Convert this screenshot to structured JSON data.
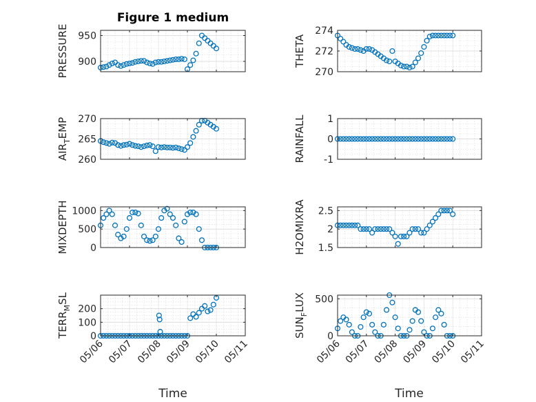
{
  "figure": {
    "title": "Figure 1 medium",
    "xlabel": "Time"
  },
  "colors": {
    "marker": "#0072BD",
    "axis": "#262626",
    "grid": "#d9d9d9"
  },
  "xticks": [
    "05/06",
    "05/07",
    "05/08",
    "05/09",
    "05/10",
    "05/11"
  ],
  "chart_data": [
    {
      "type": "scatter",
      "ylabel": "PRESSURE",
      "ylim": [
        880,
        960
      ],
      "yticks": [
        900,
        950
      ],
      "grid": true,
      "x": [
        0.0,
        0.1,
        0.2,
        0.3,
        0.4,
        0.5,
        0.6,
        0.7,
        0.8,
        0.9,
        1.0,
        1.1,
        1.2,
        1.3,
        1.4,
        1.5,
        1.6,
        1.7,
        1.8,
        1.9,
        2.0,
        2.1,
        2.2,
        2.3,
        2.4,
        2.5,
        2.6,
        2.7,
        2.8,
        2.9,
        3.0,
        3.1,
        3.2,
        3.3,
        3.4,
        3.5,
        3.6,
        3.7,
        3.8,
        3.9,
        4.0
      ],
      "y": [
        888,
        889,
        890,
        893,
        896,
        898,
        893,
        891,
        893,
        895,
        896,
        897,
        899,
        900,
        901,
        901,
        898,
        896,
        895,
        898,
        899,
        899,
        900,
        901,
        902,
        903,
        904,
        904,
        905,
        904,
        885,
        893,
        902,
        915,
        935,
        950,
        945,
        940,
        935,
        930,
        925
      ]
    },
    {
      "type": "scatter",
      "ylabel": "THETA",
      "ylim": [
        270,
        274
      ],
      "yticks": [
        270,
        272,
        274
      ],
      "grid": true,
      "x": [
        0.0,
        0.1,
        0.2,
        0.3,
        0.4,
        0.5,
        0.6,
        0.7,
        0.8,
        0.9,
        1.0,
        1.1,
        1.2,
        1.3,
        1.4,
        1.5,
        1.6,
        1.7,
        1.8,
        1.9,
        2.0,
        2.1,
        2.2,
        2.3,
        2.4,
        2.5,
        2.6,
        2.7,
        2.8,
        2.9,
        3.0,
        3.1,
        3.2,
        3.3,
        3.4,
        3.5,
        3.6,
        3.7,
        3.8,
        3.9,
        4.0
      ],
      "y": [
        273.5,
        273.2,
        272.9,
        272.6,
        272.4,
        272.3,
        272.2,
        272.2,
        272.1,
        272.0,
        272.2,
        272.2,
        272.1,
        271.9,
        271.7,
        271.5,
        271.3,
        271.1,
        271.0,
        272.0,
        271.0,
        270.8,
        270.6,
        270.5,
        270.5,
        270.4,
        270.5,
        270.9,
        271.3,
        271.8,
        272.4,
        273.0,
        273.4,
        273.5,
        273.5,
        273.5,
        273.5,
        273.5,
        273.5,
        273.5,
        273.5
      ]
    },
    {
      "type": "scatter",
      "ylabel": "AIR_TEMP",
      "ylim": [
        260,
        270
      ],
      "yticks": [
        260,
        265,
        270
      ],
      "grid": true,
      "x": [
        0.0,
        0.1,
        0.2,
        0.3,
        0.4,
        0.5,
        0.6,
        0.7,
        0.8,
        0.9,
        1.0,
        1.1,
        1.2,
        1.3,
        1.4,
        1.5,
        1.6,
        1.7,
        1.8,
        1.9,
        2.0,
        2.1,
        2.2,
        2.3,
        2.4,
        2.5,
        2.6,
        2.7,
        2.8,
        2.9,
        3.0,
        3.1,
        3.2,
        3.3,
        3.4,
        3.5,
        3.6,
        3.7,
        3.8,
        3.9,
        4.0
      ],
      "y": [
        264.5,
        264.2,
        264.0,
        263.8,
        264.1,
        264.0,
        263.5,
        263.3,
        263.5,
        263.6,
        263.8,
        263.5,
        263.3,
        263.2,
        263.0,
        263.2,
        263.4,
        263.5,
        263.2,
        262.0,
        263.0,
        262.9,
        263.0,
        262.9,
        262.9,
        262.8,
        262.9,
        262.7,
        262.5,
        262.3,
        263.0,
        264.0,
        265.5,
        267.0,
        268.5,
        269.5,
        269.5,
        269.0,
        268.5,
        268.0,
        267.5
      ]
    },
    {
      "type": "scatter",
      "ylabel": "RAINFALL",
      "ylim": [
        -1,
        1
      ],
      "yticks": [
        -1,
        0,
        1
      ],
      "grid": true,
      "x": [
        0.0,
        0.1,
        0.2,
        0.3,
        0.4,
        0.5,
        0.6,
        0.7,
        0.8,
        0.9,
        1.0,
        1.1,
        1.2,
        1.3,
        1.4,
        1.5,
        1.6,
        1.7,
        1.8,
        1.9,
        2.0,
        2.1,
        2.2,
        2.3,
        2.4,
        2.5,
        2.6,
        2.7,
        2.8,
        2.9,
        3.0,
        3.1,
        3.2,
        3.3,
        3.4,
        3.5,
        3.6,
        3.7,
        3.8,
        3.9,
        4.0
      ],
      "y": [
        0,
        0,
        0,
        0,
        0,
        0,
        0,
        0,
        0,
        0,
        0,
        0,
        0,
        0,
        0,
        0,
        0,
        0,
        0,
        0,
        0,
        0,
        0,
        0,
        0,
        0,
        0,
        0,
        0,
        0,
        0,
        0,
        0,
        0,
        0,
        0,
        0,
        0,
        0,
        0,
        0
      ]
    },
    {
      "type": "scatter",
      "ylabel": "MIXDEPTH",
      "ylim": [
        0,
        1100
      ],
      "yticks": [
        0,
        500,
        1000
      ],
      "grid": true,
      "x": [
        0.0,
        0.1,
        0.2,
        0.3,
        0.4,
        0.5,
        0.6,
        0.7,
        0.8,
        0.9,
        1.0,
        1.1,
        1.2,
        1.3,
        1.4,
        1.5,
        1.6,
        1.7,
        1.8,
        1.9,
        2.0,
        2.1,
        2.2,
        2.3,
        2.4,
        2.5,
        2.6,
        2.7,
        2.8,
        2.9,
        3.0,
        3.1,
        3.2,
        3.3,
        3.4,
        3.5,
        3.6,
        3.7,
        3.8,
        3.9,
        4.0
      ],
      "y": [
        600,
        800,
        900,
        1000,
        900,
        600,
        350,
        250,
        300,
        500,
        800,
        950,
        950,
        920,
        600,
        300,
        200,
        180,
        200,
        300,
        500,
        800,
        1000,
        1050,
        900,
        800,
        600,
        250,
        150,
        700,
        900,
        950,
        950,
        900,
        500,
        200,
        0,
        0,
        0,
        0,
        0
      ]
    },
    {
      "type": "scatter",
      "ylabel": "H2OMIXRA",
      "ylim": [
        1.5,
        2.6
      ],
      "yticks": [
        1.5,
        2,
        2.5
      ],
      "grid": true,
      "x": [
        0.0,
        0.1,
        0.2,
        0.3,
        0.4,
        0.5,
        0.6,
        0.7,
        0.8,
        0.9,
        1.0,
        1.1,
        1.2,
        1.3,
        1.4,
        1.5,
        1.6,
        1.7,
        1.8,
        1.9,
        2.0,
        2.1,
        2.2,
        2.3,
        2.4,
        2.5,
        2.6,
        2.7,
        2.8,
        2.9,
        3.0,
        3.1,
        3.2,
        3.3,
        3.4,
        3.5,
        3.6,
        3.7,
        3.8,
        3.9,
        4.0
      ],
      "y": [
        2.1,
        2.1,
        2.1,
        2.1,
        2.1,
        2.1,
        2.1,
        2.1,
        2.0,
        2.0,
        2.0,
        2.0,
        1.9,
        2.0,
        2.0,
        2.0,
        2.0,
        2.0,
        2.0,
        1.9,
        1.8,
        1.6,
        1.8,
        1.8,
        1.8,
        1.9,
        2.0,
        2.0,
        2.0,
        1.9,
        1.9,
        2.0,
        2.1,
        2.2,
        2.3,
        2.4,
        2.5,
        2.5,
        2.5,
        2.5,
        2.4
      ]
    },
    {
      "type": "scatter",
      "ylabel": "TERR_MSL",
      "ylim": [
        0,
        300
      ],
      "yticks": [
        0,
        100,
        200
      ],
      "grid": true,
      "x": [
        0.0,
        0.1,
        0.2,
        0.3,
        0.4,
        0.5,
        0.6,
        0.7,
        0.8,
        0.9,
        1.0,
        1.1,
        1.2,
        1.3,
        1.4,
        1.5,
        1.6,
        1.7,
        1.8,
        1.9,
        2.0,
        2.02,
        2.04,
        2.06,
        2.1,
        2.2,
        2.3,
        2.4,
        2.5,
        2.6,
        2.7,
        2.8,
        2.9,
        3.0,
        3.1,
        3.2,
        3.3,
        3.4,
        3.5,
        3.6,
        3.7,
        3.8,
        3.9,
        4.0
      ],
      "y": [
        0,
        0,
        0,
        0,
        0,
        0,
        0,
        0,
        0,
        0,
        0,
        0,
        0,
        0,
        0,
        0,
        0,
        0,
        0,
        0,
        0,
        150,
        120,
        30,
        0,
        0,
        0,
        0,
        0,
        0,
        0,
        0,
        0,
        0,
        130,
        160,
        140,
        170,
        200,
        220,
        180,
        190,
        230,
        280
      ]
    },
    {
      "type": "scatter",
      "ylabel": "SUN_FLUX",
      "ylim": [
        0,
        550
      ],
      "yticks": [
        0,
        500
      ],
      "grid": true,
      "x": [
        0.0,
        0.1,
        0.2,
        0.3,
        0.4,
        0.5,
        0.6,
        0.7,
        0.8,
        0.9,
        1.0,
        1.1,
        1.2,
        1.3,
        1.4,
        1.5,
        1.6,
        1.7,
        1.8,
        1.9,
        2.0,
        2.1,
        2.2,
        2.3,
        2.4,
        2.5,
        2.6,
        2.7,
        2.8,
        2.9,
        3.0,
        3.1,
        3.2,
        3.3,
        3.4,
        3.5,
        3.6,
        3.7,
        3.8,
        3.9,
        4.0
      ],
      "y": [
        100,
        200,
        250,
        220,
        150,
        50,
        0,
        0,
        120,
        250,
        320,
        300,
        150,
        50,
        0,
        0,
        150,
        350,
        550,
        450,
        250,
        100,
        0,
        0,
        0,
        80,
        200,
        350,
        320,
        200,
        50,
        0,
        0,
        100,
        250,
        350,
        300,
        150,
        0,
        0,
        0
      ]
    }
  ]
}
